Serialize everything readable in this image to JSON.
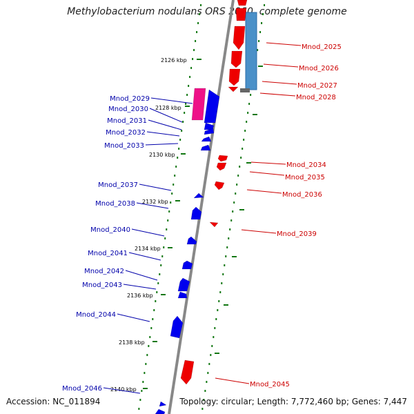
{
  "title": "Methylobacterium nodulans ORS 2060, complete genome",
  "footer": {
    "accession": "Accession: NC_011894",
    "summary": "Topology: circular; Length: 7,772,460 bp; Genes: 7,447"
  },
  "colors": {
    "reverse_gene": "#0000ee",
    "forward_gene": "#ee0000",
    "highlight_gene": "#ee1188",
    "blue_block": "#4a90c8",
    "tick": "#117711",
    "backbone": "#888888",
    "label_blue": "#0000aa",
    "label_red": "#cc0000"
  },
  "scale_ticks": [
    "2126 kbp",
    "2128 kbp",
    "2130 kbp",
    "2132 kbp",
    "2134 kbp",
    "2136 kbp",
    "2138 kbp",
    "2140 kbp"
  ],
  "labels_right": [
    "Mnod_2025",
    "Mnod_2026",
    "Mnod_2027",
    "Mnod_2028",
    "Mnod_2034",
    "Mnod_2035",
    "Mnod_2036",
    "Mnod_2039",
    "Mnod_2045"
  ],
  "labels_left": [
    "Mnod_2029",
    "Mnod_2030",
    "Mnod_2031",
    "Mnod_2032",
    "Mnod_2033",
    "Mnod_2037",
    "Mnod_2038",
    "Mnod_2040",
    "Mnod_2041",
    "Mnod_2042",
    "Mnod_2043",
    "Mnod_2044",
    "Mnod_2046"
  ]
}
